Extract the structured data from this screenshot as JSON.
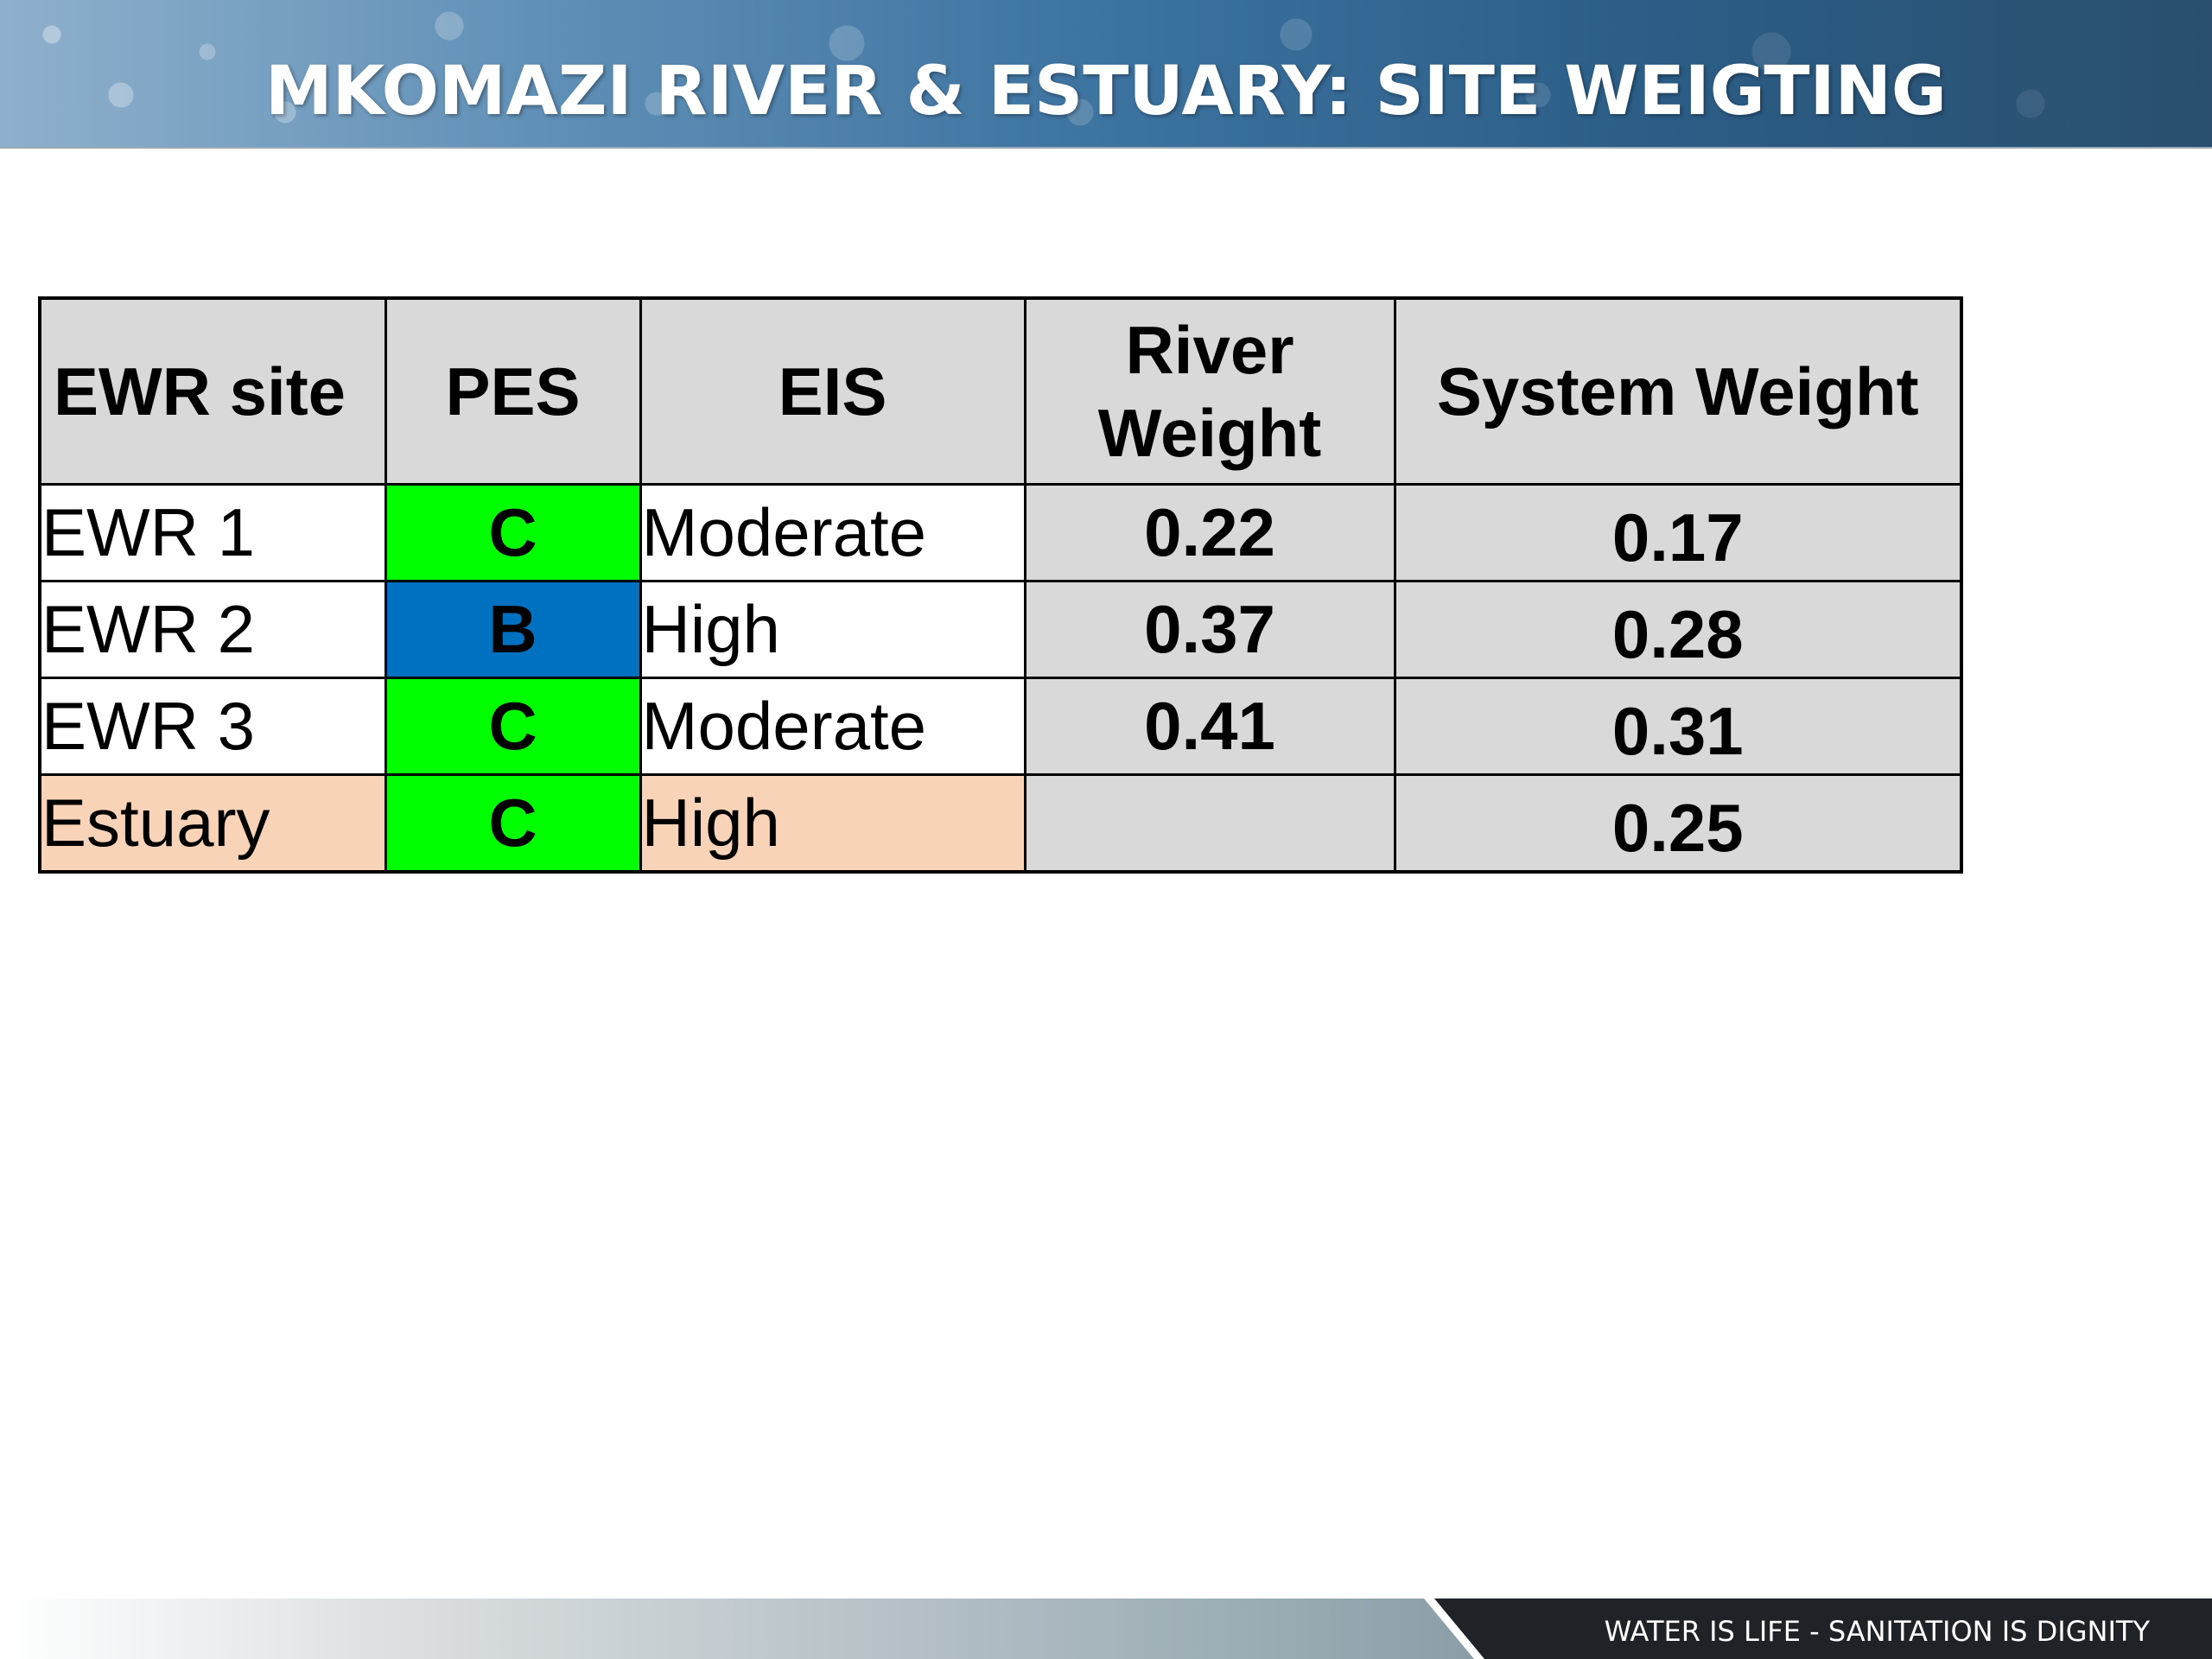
{
  "header": {
    "title": "MKOMAZI RIVER & ESTUARY: SITE WEIGTING"
  },
  "table": {
    "headers": {
      "site": "EWR site",
      "pes": "PES",
      "eis": "EIS",
      "river_weight": "River Weight",
      "system_weight": "System Weight"
    },
    "rows": [
      {
        "site": "EWR 1",
        "pes": "C",
        "pes_color": "#00ff00",
        "eis": "Moderate",
        "river_weight": "0.22",
        "system_weight": "0.17"
      },
      {
        "site": "EWR 2",
        "pes": "B",
        "pes_color": "#0070c0",
        "eis": "High",
        "river_weight": "0.37",
        "system_weight": "0.28"
      },
      {
        "site": "EWR 3",
        "pes": "C",
        "pes_color": "#00ff00",
        "eis": "Moderate",
        "river_weight": "0.41",
        "system_weight": "0.31"
      },
      {
        "site": "Estuary",
        "pes": "C",
        "pes_color": "#00ff00",
        "eis": "High",
        "river_weight": "",
        "system_weight": "0.25"
      }
    ],
    "colors": {
      "header_fill": "#d9d9d9",
      "estuary_fill": "#f8d3b8"
    }
  },
  "footer": {
    "tagline": "WATER IS LIFE - SANITATION IS DIGNITY"
  }
}
